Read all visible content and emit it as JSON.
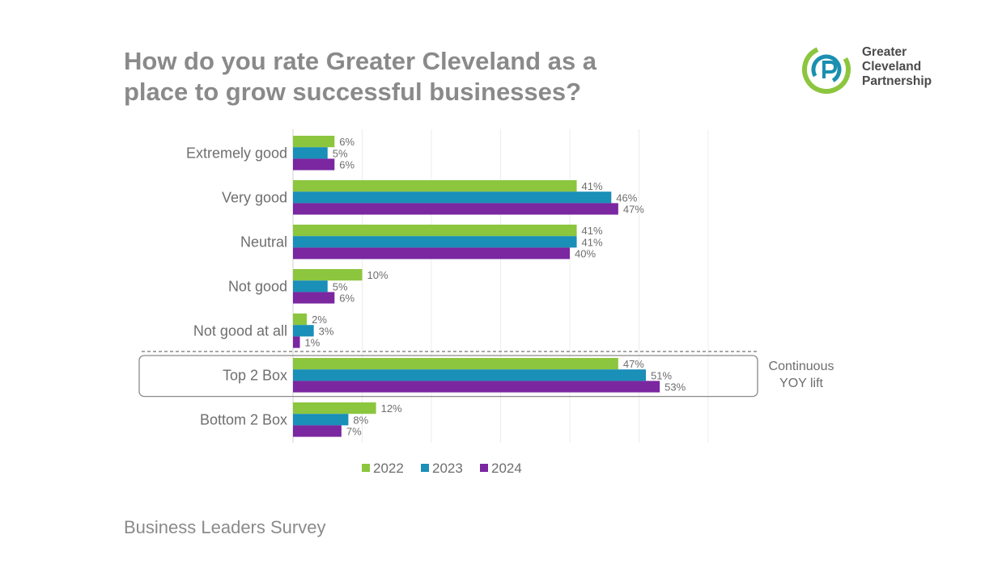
{
  "title_line1": "How do you rate Greater Cleveland as a",
  "title_line2": "place to grow successful businesses?",
  "logo": {
    "line1": "Greater",
    "line2": "Cleveland",
    "line3": "Partnership",
    "colors": {
      "green": "#8cc63f",
      "blue": "#1a8fb0"
    }
  },
  "footer": "Business Leaders Survey",
  "annotation": [
    "Continuous",
    "YOY lift"
  ],
  "chart_data": {
    "type": "bar",
    "orientation": "horizontal",
    "categories": [
      "Extremely good",
      "Very good",
      "Neutral",
      "Not good",
      "Not good at all",
      "Top 2 Box",
      "Bottom 2 Box"
    ],
    "series": [
      {
        "name": "2022",
        "color": "#8cc63f",
        "values": [
          6,
          41,
          41,
          10,
          2,
          47,
          12
        ]
      },
      {
        "name": "2023",
        "color": "#1a8fb7",
        "values": [
          5,
          46,
          41,
          5,
          3,
          51,
          8
        ]
      },
      {
        "name": "2024",
        "color": "#7a27a0",
        "values": [
          6,
          47,
          40,
          6,
          1,
          53,
          7
        ]
      }
    ],
    "value_suffix": "%",
    "xlim": [
      0,
      60
    ],
    "grid": true,
    "legend": "bottom",
    "highlighted_category": "Top 2 Box"
  }
}
